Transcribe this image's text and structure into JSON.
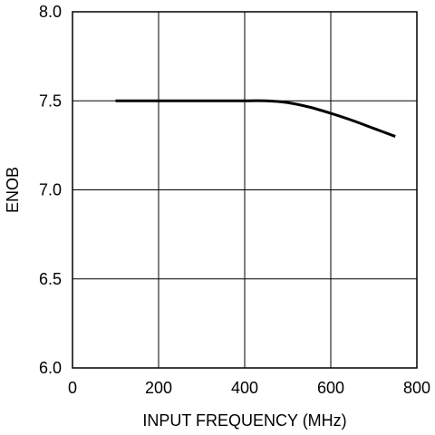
{
  "chart_data": {
    "type": "line",
    "title": "",
    "xlabel": "INPUT FREQUENCY (MHz)",
    "ylabel": "ENOB",
    "xlim": [
      0,
      800
    ],
    "ylim": [
      6.0,
      8.0
    ],
    "xticks": [
      0,
      200,
      400,
      600,
      800
    ],
    "yticks": [
      6.0,
      6.5,
      7.0,
      7.5,
      8.0
    ],
    "xtick_labels": [
      "0",
      "200",
      "400",
      "600",
      "800"
    ],
    "ytick_labels": [
      "6.0",
      "6.5",
      "7.0",
      "7.5",
      "8.0"
    ],
    "grid": true,
    "legend": "none",
    "series": [
      {
        "color": "#000000",
        "x": [
          100,
          200,
          300,
          400,
          450,
          500,
          550,
          600,
          650,
          700,
          750
        ],
        "y": [
          7.5,
          7.5,
          7.5,
          7.5,
          7.5,
          7.49,
          7.465,
          7.43,
          7.39,
          7.345,
          7.3
        ]
      }
    ]
  }
}
